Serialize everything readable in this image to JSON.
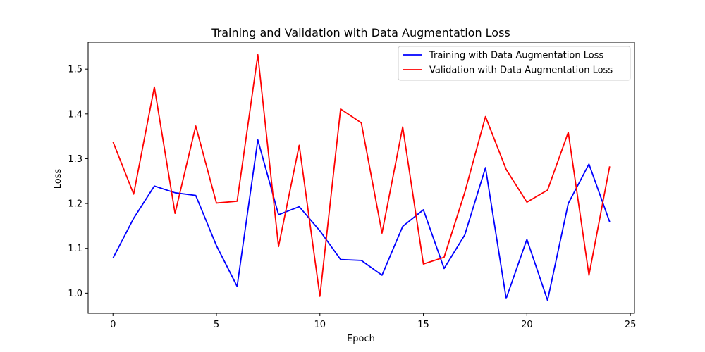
{
  "chart_data": {
    "type": "line",
    "title": "Training and Validation with Data Augmentation Loss",
    "xlabel": "Epoch",
    "ylabel": "Loss",
    "xlim": [
      -1.2,
      25.2
    ],
    "ylim": [
      0.955,
      1.56
    ],
    "xticks": [
      0,
      5,
      10,
      15,
      20,
      25
    ],
    "yticks": [
      1.0,
      1.1,
      1.2,
      1.3,
      1.4,
      1.5
    ],
    "grid": false,
    "legend_position": "top-right",
    "x": [
      0,
      1,
      2,
      3,
      4,
      5,
      6,
      7,
      8,
      9,
      10,
      11,
      12,
      13,
      14,
      15,
      16,
      17,
      18,
      19,
      20,
      21,
      22,
      23,
      24
    ],
    "series": [
      {
        "name": "Training with Data Augmentation Loss",
        "color": "#0000ff",
        "values": [
          1.078,
          1.167,
          1.239,
          1.224,
          1.218,
          1.106,
          1.015,
          1.342,
          1.175,
          1.193,
          1.139,
          1.075,
          1.073,
          1.04,
          1.149,
          1.186,
          1.055,
          1.13,
          1.28,
          0.988,
          1.12,
          0.984,
          1.2,
          1.288,
          1.159
        ]
      },
      {
        "name": "Validation with Data Augmentation Loss",
        "color": "#ff0000",
        "values": [
          1.338,
          1.221,
          1.46,
          1.178,
          1.373,
          1.201,
          1.205,
          1.532,
          1.104,
          1.33,
          0.993,
          1.411,
          1.38,
          1.134,
          1.371,
          1.065,
          1.08,
          1.225,
          1.394,
          1.276,
          1.203,
          1.23,
          1.359,
          1.04,
          1.283
        ]
      }
    ]
  }
}
